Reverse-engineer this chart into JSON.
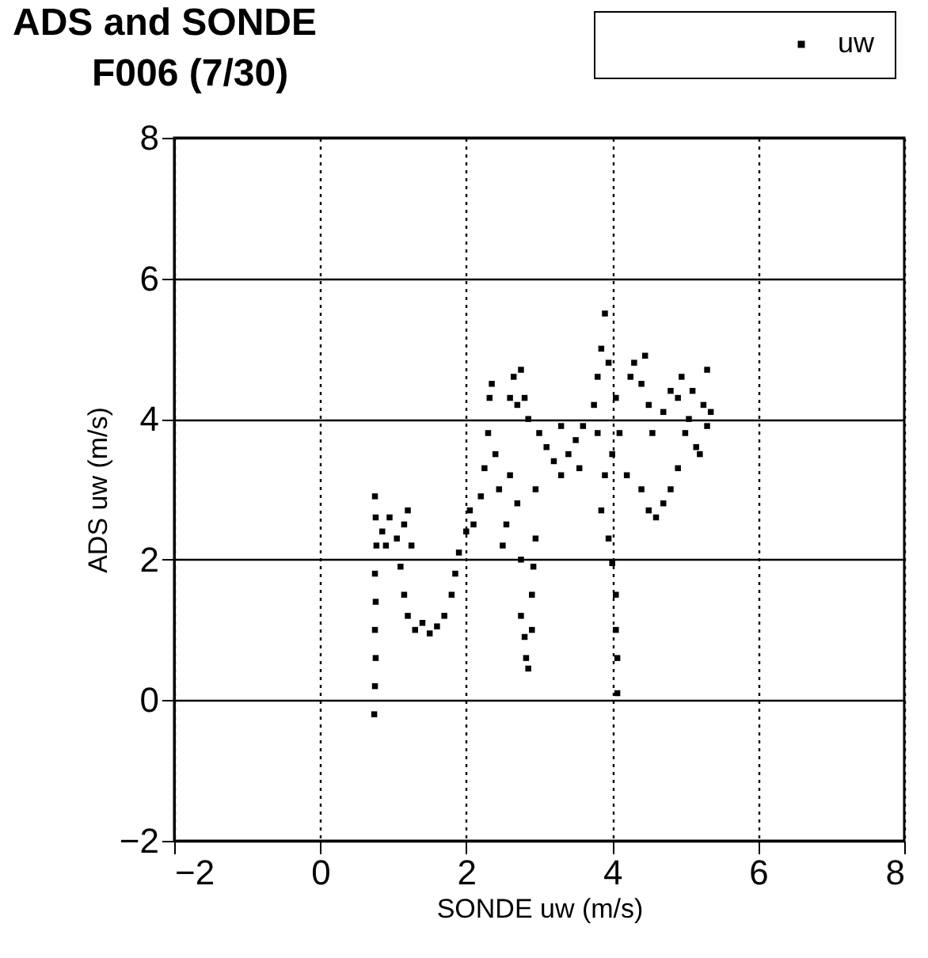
{
  "chart_data": {
    "type": "scatter",
    "title": [
      "ADS and SONDE",
      "F006 (7/30)"
    ],
    "xlabel": "SONDE uw (m/s)",
    "ylabel": "ADS uw (m/s)",
    "xlim": [
      -2,
      8
    ],
    "ylim": [
      -2,
      8
    ],
    "xticks": [
      -2,
      0,
      2,
      4,
      6,
      8
    ],
    "yticks": [
      -2,
      0,
      2,
      4,
      6,
      8
    ],
    "grid": true,
    "legend": "top right",
    "marker": "square",
    "series": [
      {
        "name": "uw",
        "color": "#000000",
        "x": [
          0.74,
          0.75,
          0.76,
          0.75,
          0.76,
          0.75,
          0.77,
          0.76,
          0.75,
          0.85,
          0.9,
          0.95,
          1.05,
          1.15,
          1.2,
          1.25,
          1.1,
          1.15,
          1.2,
          1.3,
          1.4,
          1.5,
          1.6,
          1.7,
          1.8,
          1.85,
          1.9,
          2.0,
          2.05,
          2.1,
          2.2,
          2.25,
          2.3,
          2.32,
          2.35,
          2.4,
          2.45,
          2.5,
          2.55,
          2.6,
          2.65,
          2.7,
          2.75,
          2.8,
          2.85,
          2.6,
          2.7,
          2.75,
          2.75,
          2.8,
          2.82,
          2.85,
          2.9,
          2.9,
          2.92,
          2.95,
          2.95,
          3.0,
          3.1,
          3.2,
          3.3,
          3.4,
          3.5,
          3.6,
          3.55,
          3.3,
          3.75,
          3.8,
          3.85,
          3.9,
          3.95,
          3.8,
          3.9,
          3.85,
          3.95,
          4.0,
          4.05,
          4.05,
          4.07,
          4.07,
          4.0,
          4.05,
          4.1,
          4.2,
          4.25,
          4.3,
          4.4,
          4.45,
          4.5,
          4.55,
          4.4,
          4.5,
          4.6,
          4.7,
          4.8,
          4.9,
          4.7,
          4.8,
          4.9,
          5.0,
          5.05,
          5.1,
          5.15,
          5.2,
          5.25,
          5.3,
          5.35,
          4.95,
          5.3
        ],
        "values": [
          -0.2,
          0.2,
          0.6,
          1.0,
          1.4,
          1.8,
          2.2,
          2.6,
          2.9,
          2.4,
          2.2,
          2.6,
          2.3,
          2.5,
          2.7,
          2.2,
          1.9,
          1.5,
          1.2,
          1.0,
          1.1,
          0.95,
          1.05,
          1.2,
          1.5,
          1.8,
          2.1,
          2.4,
          2.7,
          2.5,
          2.9,
          3.3,
          3.8,
          4.3,
          4.5,
          3.5,
          3.0,
          2.2,
          2.5,
          4.3,
          4.6,
          4.2,
          4.7,
          4.3,
          4.0,
          3.2,
          2.8,
          2.0,
          1.2,
          0.9,
          0.6,
          0.45,
          1.0,
          1.5,
          1.9,
          2.3,
          3.0,
          3.8,
          3.6,
          3.4,
          3.9,
          3.5,
          3.7,
          3.9,
          3.3,
          3.2,
          4.2,
          4.6,
          5.0,
          5.5,
          4.8,
          3.8,
          3.2,
          2.7,
          2.3,
          1.95,
          1.5,
          1.0,
          0.6,
          0.1,
          3.5,
          4.3,
          3.8,
          3.2,
          4.6,
          4.8,
          4.5,
          4.9,
          4.2,
          3.8,
          3.0,
          2.7,
          2.6,
          2.8,
          3.0,
          3.3,
          4.1,
          4.4,
          4.3,
          3.8,
          4.0,
          4.4,
          3.6,
          3.5,
          4.2,
          3.9,
          4.1,
          4.6,
          4.7
        ]
      }
    ]
  }
}
